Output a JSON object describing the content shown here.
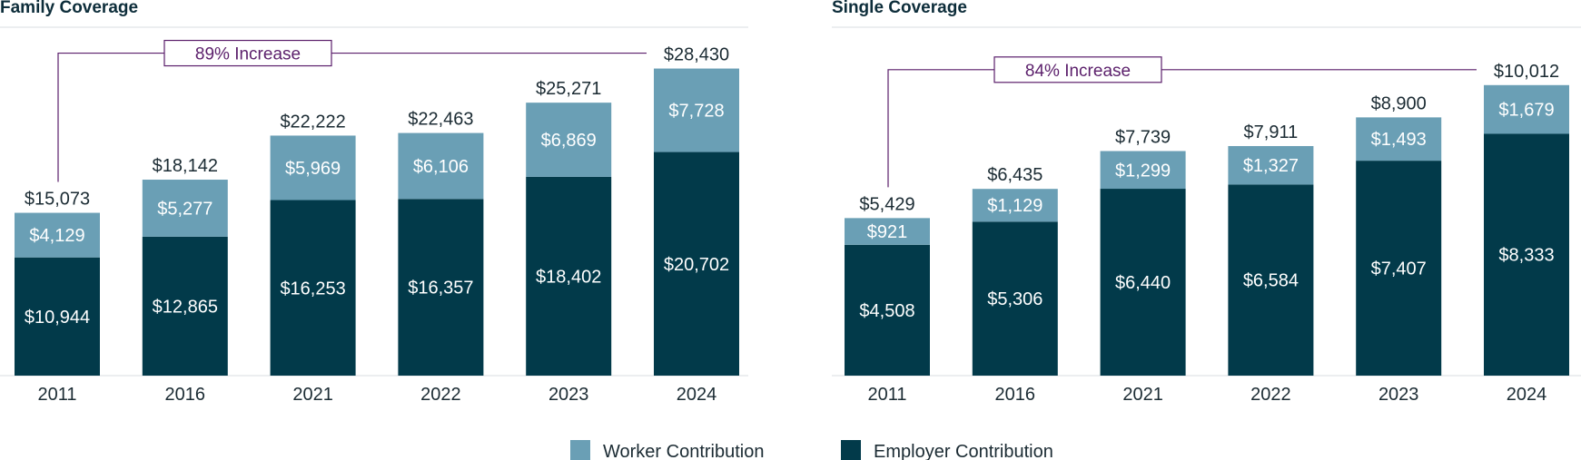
{
  "colors": {
    "worker": "#6a9fb5",
    "employer": "#023a4a",
    "annotation": "#5b1f6b",
    "axis": "#d9dde0"
  },
  "legend": {
    "worker_label": "Worker Contribution",
    "employer_label": "Employer Contribution"
  },
  "chart_data": [
    {
      "type": "bar",
      "stacked": true,
      "title": "Family Coverage",
      "categories": [
        "2011",
        "2016",
        "2021",
        "2022",
        "2023",
        "2024"
      ],
      "series": [
        {
          "name": "Employer Contribution",
          "values": [
            10944,
            12865,
            16253,
            16357,
            18402,
            20702
          ],
          "labels": [
            "$10,944",
            "$12,865",
            "$16,253",
            "$16,357",
            "$18,402",
            "$20,702"
          ]
        },
        {
          "name": "Worker Contribution",
          "values": [
            4129,
            5277,
            5969,
            6106,
            6869,
            7728
          ],
          "labels": [
            "$4,129",
            "$5,277",
            "$5,969",
            "$6,106",
            "$6,869",
            "$7,728"
          ]
        }
      ],
      "totals": [
        15073,
        18142,
        22222,
        22463,
        25271,
        28430
      ],
      "total_labels": [
        "$15,073",
        "$18,142",
        "$22,222",
        "$22,463",
        "$25,271",
        "$28,430"
      ],
      "annotation": "89% Increase",
      "ylim": [
        0,
        31500
      ]
    },
    {
      "type": "bar",
      "stacked": true,
      "title": "Single Coverage",
      "categories": [
        "2011",
        "2016",
        "2021",
        "2022",
        "2023",
        "2024"
      ],
      "series": [
        {
          "name": "Employer Contribution",
          "values": [
            4508,
            5306,
            6440,
            6584,
            7407,
            8333
          ],
          "labels": [
            "$4,508",
            "$5,306",
            "$6,440",
            "$6,584",
            "$7,407",
            "$8,333"
          ]
        },
        {
          "name": "Worker Contribution",
          "values": [
            921,
            1129,
            1299,
            1327,
            1493,
            1679
          ],
          "labels": [
            "$921",
            "$1,129",
            "$1,299",
            "$1,327",
            "$1,493",
            "$1,679"
          ]
        }
      ],
      "totals": [
        5429,
        6435,
        7739,
        7911,
        8900,
        10012
      ],
      "total_labels": [
        "$5,429",
        "$6,435",
        "$7,739",
        "$7,911",
        "$8,900",
        "$10,012"
      ],
      "annotation": "84% Increase",
      "ylim": [
        0,
        11100
      ]
    }
  ]
}
